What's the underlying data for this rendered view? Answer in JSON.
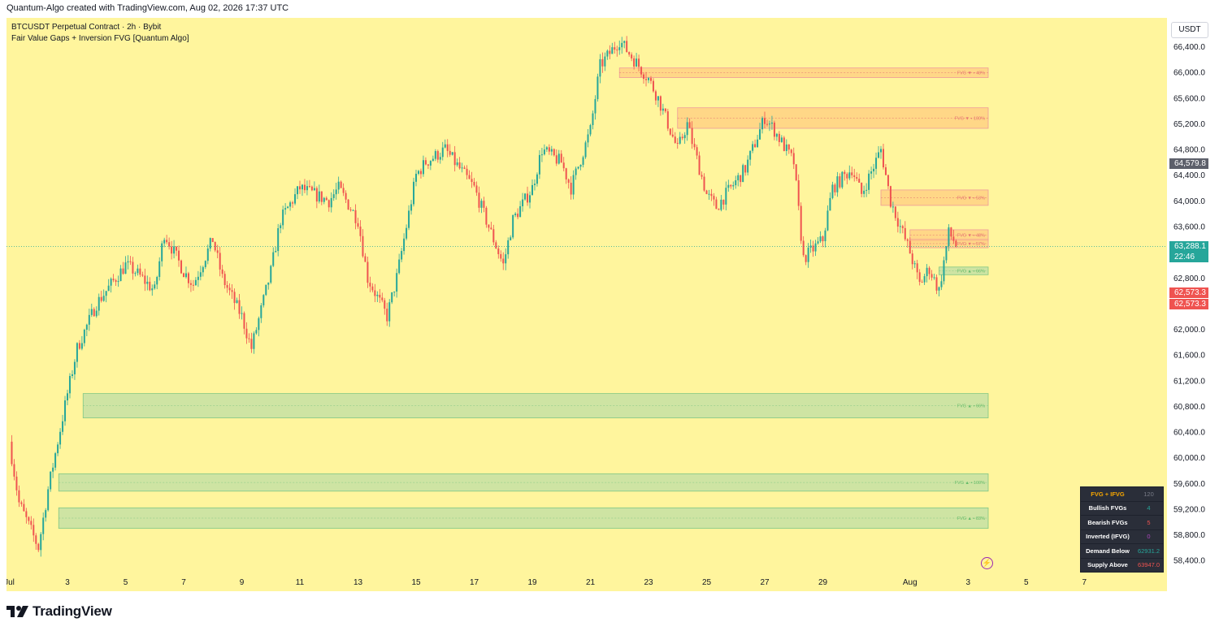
{
  "header": {
    "text": "Quantum-Algo created with TradingView.com, Aug 02, 2026 17:37 UTC"
  },
  "legend": {
    "symbol_line": "BTCUSDT Perpetual Contract · 2h · Bybit",
    "indicator_line": "Fair Value Gaps + Inversion FVG [Quantum Algo]"
  },
  "price_axis": {
    "unit": "USDT",
    "labels": [
      "66,400.0",
      "66,000.0",
      "65,600.0",
      "65,200.0",
      "64,800.0",
      "64,400.0",
      "64,000.0",
      "63,600.0",
      "63,200.0",
      "62,800.0",
      "62,000.0",
      "61,600.0",
      "61,200.0",
      "60,800.0",
      "60,400.0",
      "60,000.0",
      "59,600.0",
      "59,200.0",
      "58,800.0",
      "58,400.0"
    ],
    "badges": {
      "high_marker": "64,579.8",
      "last_price": "63,288.1",
      "countdown": "22:46",
      "red_1": "62,573.3",
      "red_2": "62,573.3"
    }
  },
  "time_axis": {
    "labels": [
      "Jul",
      "3",
      "5",
      "7",
      "9",
      "11",
      "13",
      "15",
      "17",
      "19",
      "21",
      "23",
      "25",
      "27",
      "29",
      "Aug",
      "3",
      "5",
      "7"
    ]
  },
  "colors": {
    "background": "#fff59d",
    "up_candle": "#26a69a",
    "down_candle": "#ef5350",
    "bullish_zone": "#c5e1a5",
    "bearish_zone": "#ffcc80",
    "last_price": "#26a69a"
  },
  "stats_table": {
    "title": "FVG + IFVG",
    "title_value": "120",
    "rows": [
      {
        "label": "Bullish FVGs",
        "value": "4",
        "color": "#26a69a"
      },
      {
        "label": "Bearish FVGs",
        "value": "5",
        "color": "#ef5350"
      },
      {
        "label": "Inverted (IFVG)",
        "value": "0",
        "color": "#ab47bc"
      },
      {
        "label": "Demand Below",
        "value": "62931.2",
        "color": "#26a69a"
      },
      {
        "label": "Supply Above",
        "value": "63947.0",
        "color": "#ef5350"
      }
    ]
  },
  "footer": {
    "brand": "TradingView"
  },
  "chart_data": {
    "type": "candlestick",
    "title": "BTCUSDT Perpetual Contract · 2h · Bybit",
    "ylabel": "USDT",
    "ylim": [
      58200,
      66850
    ],
    "x_range": [
      "Jul 1",
      "Aug 8"
    ],
    "last_price": 63288.1,
    "close_path": [
      [
        "Jul 1",
        60250
      ],
      [
        "Jul 1",
        59300
      ],
      [
        "Jul 2",
        58600
      ],
      [
        "Jul 2",
        59500
      ],
      [
        "Jul 3",
        61000
      ],
      [
        "Jul 3",
        61700
      ],
      [
        "Jul 4",
        62400
      ],
      [
        "Jul 5",
        63000
      ],
      [
        "Jul 5",
        62900
      ],
      [
        "Jul 6",
        62600
      ],
      [
        "Jul 6",
        63500
      ],
      [
        "Jul 7",
        62900
      ],
      [
        "Jul 7",
        62700
      ],
      [
        "Jul 8",
        63400
      ],
      [
        "Jul 8",
        62800
      ],
      [
        "Jul 9",
        62200
      ],
      [
        "Jul 9",
        61700
      ],
      [
        "Jul 10",
        62900
      ],
      [
        "Jul 10",
        63700
      ],
      [
        "Jul 11",
        64200
      ],
      [
        "Jul 12",
        64000
      ],
      [
        "Jul 12",
        64200
      ],
      [
        "Jul 13",
        63700
      ],
      [
        "Jul 13",
        62800
      ],
      [
        "Jul 14",
        62200
      ],
      [
        "Jul 14",
        62800
      ],
      [
        "Jul 15",
        64400
      ],
      [
        "Jul 15",
        64600
      ],
      [
        "Jul 16",
        64800
      ],
      [
        "Jul 17",
        64200
      ],
      [
        "Jul 17",
        63800
      ],
      [
        "Jul 18",
        63000
      ],
      [
        "Jul 18",
        63700
      ],
      [
        "Jul 19",
        64200
      ],
      [
        "Jul 19",
        64800
      ],
      [
        "Jul 20",
        64600
      ],
      [
        "Jul 20",
        64200
      ],
      [
        "Jul 21",
        65100
      ],
      [
        "Jul 21",
        66100
      ],
      [
        "Jul 22",
        66500
      ],
      [
        "Jul 22",
        66300
      ],
      [
        "Jul 23",
        65900
      ],
      [
        "Jul 23",
        65600
      ],
      [
        "Jul 24",
        64800
      ],
      [
        "Jul 24",
        65200
      ],
      [
        "Jul 25",
        64100
      ],
      [
        "Jul 25",
        63900
      ],
      [
        "Jul 26",
        64300
      ],
      [
        "Jul 26",
        64500
      ],
      [
        "Jul 27",
        65300
      ],
      [
        "Jul 27",
        65100
      ],
      [
        "Jul 28",
        64600
      ],
      [
        "Jul 28",
        63100
      ],
      [
        "Jul 29",
        63400
      ],
      [
        "Jul 29",
        64200
      ],
      [
        "Jul 30",
        64500
      ],
      [
        "Jul 30",
        64100
      ],
      [
        "Jul 31",
        64800
      ],
      [
        "Jul 31",
        64000
      ],
      [
        "Aug 1",
        63200
      ],
      [
        "Aug 1",
        62700
      ],
      [
        "Aug 1",
        62950
      ],
      [
        "Aug 2",
        62600
      ],
      [
        "Aug 2",
        63500
      ],
      [
        "Aug 2",
        63288
      ]
    ],
    "zones": [
      {
        "label": "FVG ▼ • 48%",
        "kind": "bearish",
        "from": "Jul 22",
        "top": 66070,
        "bottom": 65920
      },
      {
        "label": "FVG ▼ • 100%",
        "kind": "bearish",
        "from": "Jul 24",
        "top": 65450,
        "bottom": 65130
      },
      {
        "label": "FVG ▼ • 53%",
        "kind": "bearish",
        "from": "Jul 31",
        "top": 64170,
        "bottom": 63930
      },
      {
        "label": "FVG ▼ • 48%",
        "kind": "bearish",
        "from": "Aug 1",
        "top": 63550,
        "bottom": 63380
      },
      {
        "label": "FVG ▼ • 57%",
        "kind": "bearish",
        "from": "Aug 1",
        "top": 63400,
        "bottom": 63270
      },
      {
        "label": "FVG ▲ • 66%",
        "kind": "bullish",
        "from": "Aug 2",
        "top": 62970,
        "bottom": 62850
      },
      {
        "label": "FVG ▲ • 66%",
        "kind": "bullish",
        "from": "Jul 2",
        "top": 61000,
        "bottom": 60620
      },
      {
        "label": "FVG ▲ • 100%",
        "kind": "bullish",
        "from": "Jul 2",
        "top": 59750,
        "bottom": 59480
      },
      {
        "label": "FVG ▲ • 83%",
        "kind": "bullish",
        "from": "Jul 2",
        "top": 59220,
        "bottom": 58900
      }
    ]
  }
}
